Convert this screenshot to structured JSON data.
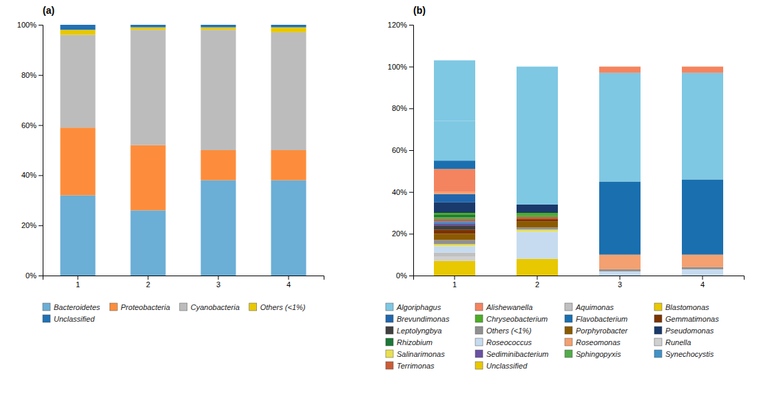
{
  "chart_data": [
    {
      "type": "bar",
      "stacked": true,
      "title": "(a)",
      "categories": [
        "1",
        "2",
        "3",
        "4"
      ],
      "series": [
        {
          "name": "Bacteroidetes",
          "color": "#6baed6",
          "values": [
            0.32,
            0.26,
            0.38,
            0.38
          ]
        },
        {
          "name": "Proteobacteria",
          "color": "#fd8d3c",
          "values": [
            0.27,
            0.26,
            0.12,
            0.12
          ]
        },
        {
          "name": "Cyanobacteria",
          "color": "#bcbcbc",
          "values": [
            0.37,
            0.46,
            0.48,
            0.47
          ]
        },
        {
          "name": "Others (<1%)",
          "color": "#e8c800",
          "values": [
            0.02,
            0.01,
            0.01,
            0.02
          ]
        },
        {
          "name": "Unclassified",
          "color": "#2171b5",
          "values": [
            0.02,
            0.01,
            0.01,
            0.01
          ]
        }
      ],
      "ylim": [
        0,
        1.0
      ],
      "yticks": [
        {
          "value": 0,
          "label": "0%"
        },
        {
          "value": 0.2,
          "label": "20%"
        },
        {
          "value": 0.4,
          "label": "40%"
        },
        {
          "value": 0.6,
          "label": "60%"
        },
        {
          "value": 0.8,
          "label": "80%"
        },
        {
          "value": 1.0,
          "label": "100%"
        }
      ],
      "legend": "bottom"
    },
    {
      "type": "bar",
      "stacked": true,
      "title": "(b)",
      "categories": [
        "1",
        "2",
        "3",
        "4"
      ],
      "series": [
        {
          "name": "Blastomonas",
          "color": "#e8c800",
          "values": [
            0.07,
            0.0,
            0.0,
            0.0
          ]
        },
        {
          "name": "Unclassified",
          "color": "#e8c800",
          "values": [
            0.0,
            0.08,
            0.0,
            0.0
          ]
        },
        {
          "name": "Runella",
          "color": "#d0d0d0",
          "values": [
            0.02,
            0.0,
            0.0,
            0.0
          ]
        },
        {
          "name": "Aquimonas",
          "color": "#c0c0c0",
          "values": [
            0.02,
            0.0,
            0.0,
            0.0
          ]
        },
        {
          "name": "Roseococcus",
          "color": "#c6dbef",
          "values": [
            0.03,
            0.13,
            0.02,
            0.03
          ]
        },
        {
          "name": "Salinarimonas",
          "color": "#e8e050",
          "values": [
            0.01,
            0.01,
            0.0,
            0.0
          ]
        },
        {
          "name": "Others (<1%)",
          "color": "#909090",
          "values": [
            0.02,
            0.01,
            0.01,
            0.01
          ]
        },
        {
          "name": "Porphyrobacter",
          "color": "#8b5a00",
          "values": [
            0.03,
            0.03,
            0.0,
            0.0
          ]
        },
        {
          "name": "Gemmatimonas",
          "color": "#7b3300",
          "values": [
            0.02,
            0.01,
            0.0,
            0.0
          ]
        },
        {
          "name": "Leptolyngbya",
          "color": "#404040",
          "values": [
            0.02,
            0.0,
            0.0,
            0.0
          ]
        },
        {
          "name": "Sediminibacterium",
          "color": "#6a51a3",
          "values": [
            0.01,
            0.0,
            0.0,
            0.0
          ]
        },
        {
          "name": "Synechocystis",
          "color": "#4292c6",
          "values": [
            0.01,
            0.0,
            0.0,
            0.0
          ]
        },
        {
          "name": "Terrimonas",
          "color": "#cb5c38",
          "values": [
            0.01,
            0.01,
            0.0,
            0.0
          ]
        },
        {
          "name": "Sphingopyxis",
          "color": "#54ab4b",
          "values": [
            0.01,
            0.01,
            0.0,
            0.0
          ]
        },
        {
          "name": "Rhizobium",
          "color": "#1b7837",
          "values": [
            0.01,
            0.0,
            0.0,
            0.0
          ]
        },
        {
          "name": "Chryseobacterium",
          "color": "#4dac26",
          "values": [
            0.01,
            0.01,
            0.0,
            0.0
          ]
        },
        {
          "name": "Pseudomonas",
          "color": "#1a3a6b",
          "values": [
            0.05,
            0.04,
            0.0,
            0.0
          ]
        },
        {
          "name": "Brevundimonas",
          "color": "#2166ac",
          "values": [
            0.04,
            0.0,
            0.0,
            0.0
          ]
        },
        {
          "name": "Roseomonas",
          "color": "#f4a070",
          "values": [
            0.01,
            0.0,
            0.07,
            0.06
          ]
        },
        {
          "name": "Alishewanella",
          "color": "#f4845f",
          "values": [
            0.11,
            0.0,
            0.0,
            0.0
          ]
        },
        {
          "name": "Flavobacterium",
          "color": "#1a6faf",
          "values": [
            0.04,
            0.0,
            0.35,
            0.36
          ]
        },
        {
          "name": "Algoriphagus",
          "color": "#7ec8e3",
          "values": [
            0.19,
            0.0,
            0.0,
            0.0
          ]
        },
        {
          "name": "Algoriphagus",
          "color": "#7ec8e3",
          "values": [
            0.29,
            0.66,
            0.52,
            0.51
          ]
        },
        {
          "name": "Alishewanella",
          "color": "#f4845f",
          "values": [
            0.0,
            0.0,
            0.03,
            0.03
          ]
        }
      ],
      "ylim": [
        0,
        1.2
      ],
      "yticks": [
        {
          "value": 0,
          "label": "0%"
        },
        {
          "value": 0.2,
          "label": "20%"
        },
        {
          "value": 0.4,
          "label": "40%"
        },
        {
          "value": 0.6,
          "label": "60%"
        },
        {
          "value": 0.8,
          "label": "80%"
        },
        {
          "value": 1.0,
          "label": "100%"
        },
        {
          "value": 1.2,
          "label": "120%"
        }
      ],
      "legend": "bottom"
    }
  ]
}
